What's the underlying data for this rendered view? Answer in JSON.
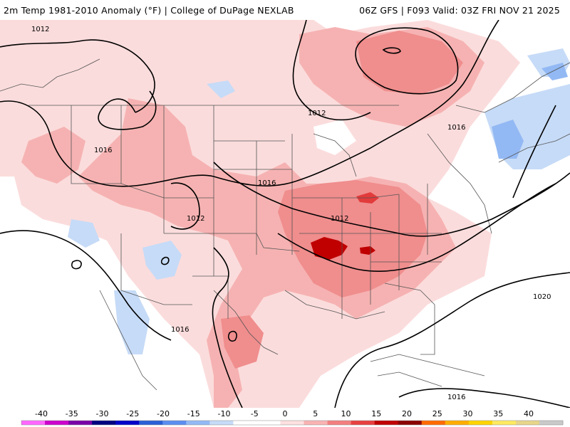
{
  "header": {
    "left_title": "2m Temp 1981-2010 Anomaly (°F) | College of DuPage NEXLAB",
    "right_title": "06Z GFS | F093 Valid: 03Z FRI NOV 21 2025"
  },
  "map": {
    "contour_labels": [
      {
        "label": "1012",
        "region": "upper-left-corner"
      },
      {
        "label": "1012",
        "region": "upper-midwest"
      },
      {
        "label": "1016",
        "region": "northern-rockies"
      },
      {
        "label": "1016",
        "region": "central-plains"
      },
      {
        "label": "1012",
        "region": "southern-rockies"
      },
      {
        "label": "1012",
        "region": "mid-south"
      },
      {
        "label": "1016",
        "region": "great-lakes-east"
      },
      {
        "label": "1016",
        "region": "baja-sonora"
      },
      {
        "label": "1020",
        "region": "western-atlantic"
      },
      {
        "label": "1016",
        "region": "caribbean"
      }
    ]
  },
  "colorbar": {
    "ticks": [
      "-40",
      "-35",
      "-30",
      "-25",
      "-20",
      "-15",
      "-10",
      "-5",
      "0",
      "5",
      "10",
      "15",
      "20",
      "25",
      "30",
      "35",
      "40"
    ],
    "colors": [
      "#ff66ff",
      "#cc00cc",
      "#7a00a8",
      "#000080",
      "#0000c8",
      "#2a5fd6",
      "#5b8ef0",
      "#93b9f4",
      "#c6dbf7",
      "#ffffff",
      "#ffffff",
      "#fde0e0",
      "#f9b3b3",
      "#f47f7f",
      "#e84040",
      "#c00000",
      "#8b0000",
      "#ff6a00",
      "#ffae00",
      "#ffd400",
      "#ffea60",
      "#e8d58a",
      "#c9c9c9"
    ]
  }
}
